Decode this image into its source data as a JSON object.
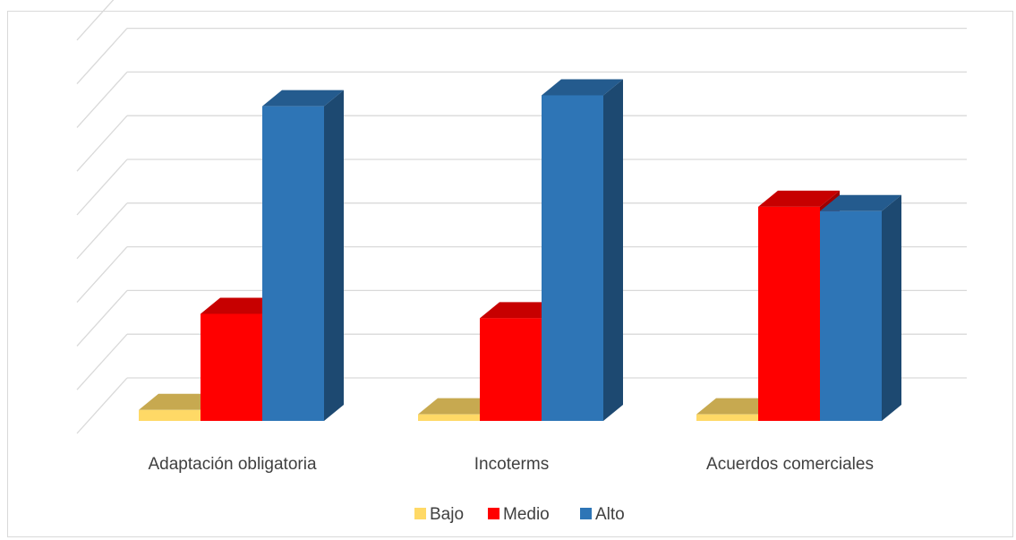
{
  "chart_data": {
    "type": "bar",
    "categories": [
      "Adaptación obligatoria",
      "Incoterms",
      "Acuerdos comerciales"
    ],
    "series": [
      {
        "name": "Bajo",
        "values": [
          0.25,
          0.15,
          0.15
        ]
      },
      {
        "name": "Medio",
        "values": [
          2.45,
          2.35,
          4.9
        ]
      },
      {
        "name": "Alto",
        "values": [
          7.2,
          7.45,
          4.8
        ]
      }
    ],
    "ylim": [
      0,
      9
    ],
    "grid": true,
    "legend_position": "bottom",
    "colors": {
      "Bajo": "#FFD966",
      "Medio": "#FF0000",
      "Alto": "#2E75B6"
    }
  }
}
